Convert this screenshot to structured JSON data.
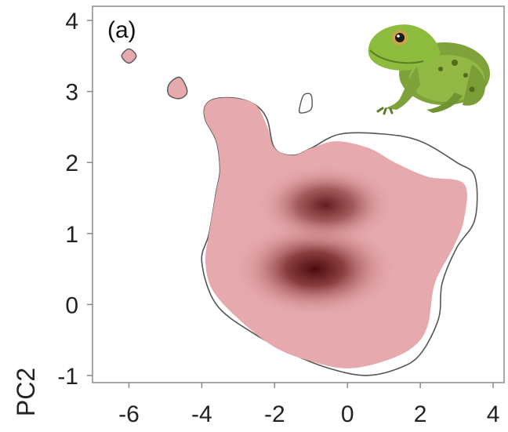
{
  "chart_data": {
    "type": "heatmap",
    "panel_label": "(a)",
    "xlabel": "",
    "ylabel": "PC2",
    "xlim": [
      -7,
      4.3
    ],
    "ylim": [
      -1.1,
      4.2
    ],
    "x_ticks": [
      -6,
      -4,
      -2,
      0,
      2,
      4
    ],
    "y_ticks": [
      -1,
      0,
      1,
      2,
      3,
      4
    ],
    "density_peaks": [
      {
        "x": -0.9,
        "y": 0.5,
        "relative_density": 1.0
      },
      {
        "x": -0.6,
        "y": 1.4,
        "relative_density": 0.85
      }
    ],
    "niche_region_outline": [
      [
        -3.8,
        1.0
      ],
      [
        -3.6,
        1.6
      ],
      [
        -3.5,
        1.9
      ],
      [
        -3.6,
        2.3
      ],
      [
        -3.9,
        2.6
      ],
      [
        -3.9,
        2.8
      ],
      [
        -3.6,
        2.9
      ],
      [
        -3.0,
        2.9
      ],
      [
        -2.5,
        2.8
      ],
      [
        -2.2,
        2.6
      ],
      [
        -2.0,
        2.2
      ],
      [
        -1.5,
        2.1
      ],
      [
        -1.0,
        2.2
      ],
      [
        -0.2,
        2.4
      ],
      [
        1.0,
        2.4
      ],
      [
        2.0,
        2.3
      ],
      [
        3.0,
        2.0
      ],
      [
        3.5,
        1.8
      ],
      [
        3.5,
        1.2
      ],
      [
        3.0,
        0.8
      ],
      [
        2.6,
        0.3
      ],
      [
        2.5,
        -0.2
      ],
      [
        2.0,
        -0.7
      ],
      [
        1.4,
        -0.9
      ],
      [
        0.5,
        -1.0
      ],
      [
        -0.5,
        -0.9
      ],
      [
        -1.5,
        -0.7
      ],
      [
        -2.6,
        -0.4
      ],
      [
        -3.6,
        0.0
      ],
      [
        -4.0,
        0.6
      ]
    ],
    "occupied_region_outline": [
      [
        -3.8,
        1.0
      ],
      [
        -3.6,
        1.6
      ],
      [
        -3.5,
        1.9
      ],
      [
        -3.6,
        2.3
      ],
      [
        -3.9,
        2.6
      ],
      [
        -3.9,
        2.8
      ],
      [
        -3.6,
        2.9
      ],
      [
        -3.0,
        2.9
      ],
      [
        -2.5,
        2.8
      ],
      [
        -2.2,
        2.5
      ],
      [
        -2.0,
        2.2
      ],
      [
        -1.5,
        2.1
      ],
      [
        -1.0,
        2.2
      ],
      [
        -0.3,
        2.3
      ],
      [
        0.6,
        2.2
      ],
      [
        1.3,
        2.0
      ],
      [
        2.2,
        1.8
      ],
      [
        3.2,
        1.7
      ],
      [
        3.2,
        1.2
      ],
      [
        2.9,
        0.8
      ],
      [
        2.4,
        0.3
      ],
      [
        2.2,
        -0.3
      ],
      [
        1.8,
        -0.6
      ],
      [
        1.0,
        -0.8
      ],
      [
        0.0,
        -0.9
      ],
      [
        -1.0,
        -0.8
      ],
      [
        -2.0,
        -0.6
      ],
      [
        -3.0,
        -0.2
      ],
      [
        -3.7,
        0.2
      ],
      [
        -3.9,
        0.6
      ]
    ],
    "islands": [
      {
        "outline": [
          [
            -6.2,
            3.5
          ],
          [
            -6.0,
            3.6
          ],
          [
            -5.8,
            3.5
          ],
          [
            -6.0,
            3.4
          ]
        ],
        "filled": true
      },
      {
        "outline": [
          [
            -4.9,
            3.1
          ],
          [
            -4.6,
            3.2
          ],
          [
            -4.4,
            3.0
          ],
          [
            -4.6,
            2.9
          ],
          [
            -4.9,
            2.95
          ]
        ],
        "filled": true
      },
      {
        "outline": [
          [
            -1.3,
            2.8
          ],
          [
            -1.2,
            2.95
          ],
          [
            -1.0,
            2.95
          ],
          [
            -1.0,
            2.75
          ],
          [
            -1.3,
            2.7
          ]
        ],
        "filled": false
      }
    ],
    "colors": {
      "occupied_fill": "#e6a9ad",
      "density_peak": "#4a0a0c",
      "outline": "#555555"
    }
  },
  "image": {
    "icon": "green-frog-photo"
  }
}
